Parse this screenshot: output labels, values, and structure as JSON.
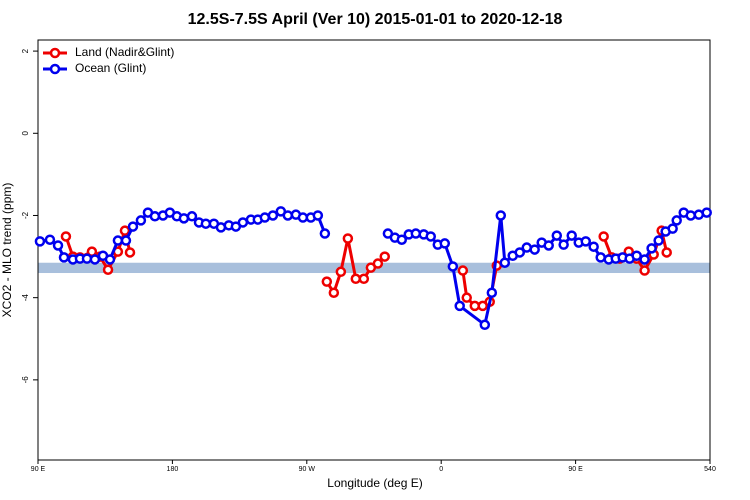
{
  "chart_data": {
    "type": "line",
    "title": "12.5S-7.5S April (Ver 10)   2015-01-01 to 2020-12-18",
    "xlabel": "Longitude (deg E)",
    "ylabel": "XCO2 - MLO trend (ppm)",
    "xlim": [
      90,
      540
    ],
    "ylim": [
      -7.95,
      2.27
    ],
    "xticks": [
      {
        "value": 90,
        "label": "90 E"
      },
      180,
      {
        "value": 270,
        "label": "90 W"
      },
      {
        "value": 360,
        "label": "0"
      },
      {
        "value": 450,
        "label": "90 E"
      },
      540
    ],
    "yticks": [
      2,
      0,
      -2,
      -4,
      -6
    ],
    "legend": "top-left",
    "band": {
      "ymin": -3.4,
      "ymax": -3.15,
      "color": "#a8bfdc"
    },
    "series": [
      {
        "name": "Land (Nadir&Glint)",
        "color": "#ee0000",
        "x": [
          108.7,
          113.4,
          118.1,
          126.1,
          131.5,
          136.9,
          143.5,
          148.2,
          151.6,
          null,
          283.4,
          288.1,
          292.8,
          297.5,
          302.8,
          308.2,
          312.9,
          317.6,
          322.2,
          null,
          374.5,
          377.1,
          382.5,
          387.8,
          392.5,
          397.2,
          null,
          468.8,
          474.2,
          479.5,
          485.6,
          490.9,
          496.2,
          502.3,
          507.6,
          511.0
        ],
        "values": [
          -2.51,
          -3.0,
          -3.02,
          -2.88,
          -3.0,
          -3.32,
          -2.88,
          -2.37,
          -2.9,
          null,
          -3.61,
          -3.88,
          -3.37,
          -2.56,
          -3.54,
          -3.54,
          -3.27,
          -3.17,
          -3.0,
          null,
          -3.34,
          -4.0,
          -4.2,
          -4.2,
          -4.1,
          -3.22,
          null,
          -2.51,
          -3.02,
          -3.05,
          -2.88,
          -3.05,
          -3.34,
          -2.95,
          -2.37,
          -2.9
        ]
      },
      {
        "name": "Ocean (Glint)",
        "color": "#0000ee",
        "x": [
          91.3,
          98.0,
          103.4,
          107.4,
          113.4,
          118.1,
          122.8,
          128.1,
          133.5,
          138.2,
          143.5,
          148.9,
          153.6,
          158.9,
          163.6,
          168.3,
          173.7,
          178.3,
          183.0,
          187.7,
          193.1,
          197.8,
          202.4,
          207.8,
          212.5,
          217.8,
          222.5,
          227.2,
          232.6,
          237.2,
          241.9,
          247.3,
          252.6,
          257.3,
          262.7,
          267.4,
          272.7,
          277.4,
          282.1,
          null,
          324.3,
          329.0,
          333.6,
          338.3,
          343.0,
          348.3,
          353.0,
          357.7,
          362.4,
          367.8,
          372.4,
          389.2,
          393.9,
          399.9,
          402.6,
          407.9,
          412.6,
          417.3,
          422.6,
          427.3,
          432.0,
          437.4,
          442.0,
          447.4,
          452.1,
          456.8,
          462.1,
          466.8,
          472.2,
          476.9,
          481.5,
          486.2,
          490.9,
          496.2,
          500.9,
          505.6,
          510.3,
          515.0,
          517.7,
          522.4,
          527.1,
          532.5,
          537.8
        ],
        "values": [
          -2.63,
          -2.59,
          -2.73,
          -3.02,
          -3.07,
          -3.05,
          -3.05,
          -3.07,
          -2.98,
          -3.07,
          -2.61,
          -2.61,
          -2.27,
          -2.12,
          -1.93,
          -2.02,
          -2.0,
          -1.93,
          -2.02,
          -2.07,
          -2.02,
          -2.17,
          -2.2,
          -2.2,
          -2.29,
          -2.24,
          -2.27,
          -2.17,
          -2.1,
          -2.1,
          -2.05,
          -2.0,
          -1.9,
          -2.0,
          -1.98,
          -2.05,
          -2.05,
          -2.0,
          -2.44,
          null,
          -2.44,
          -2.54,
          -2.59,
          -2.46,
          -2.44,
          -2.46,
          -2.51,
          -2.71,
          -2.68,
          -3.24,
          -4.2,
          -4.66,
          -3.88,
          -2.0,
          -3.15,
          -2.98,
          -2.9,
          -2.78,
          -2.83,
          -2.66,
          -2.73,
          -2.49,
          -2.71,
          -2.49,
          -2.66,
          -2.63,
          -2.76,
          -3.02,
          -3.07,
          -3.05,
          -3.02,
          -3.05,
          -2.98,
          -3.07,
          -2.8,
          -2.61,
          -2.39,
          -2.32,
          -2.12,
          -1.93,
          -2.0,
          -1.98,
          -1.93
        ]
      }
    ]
  }
}
